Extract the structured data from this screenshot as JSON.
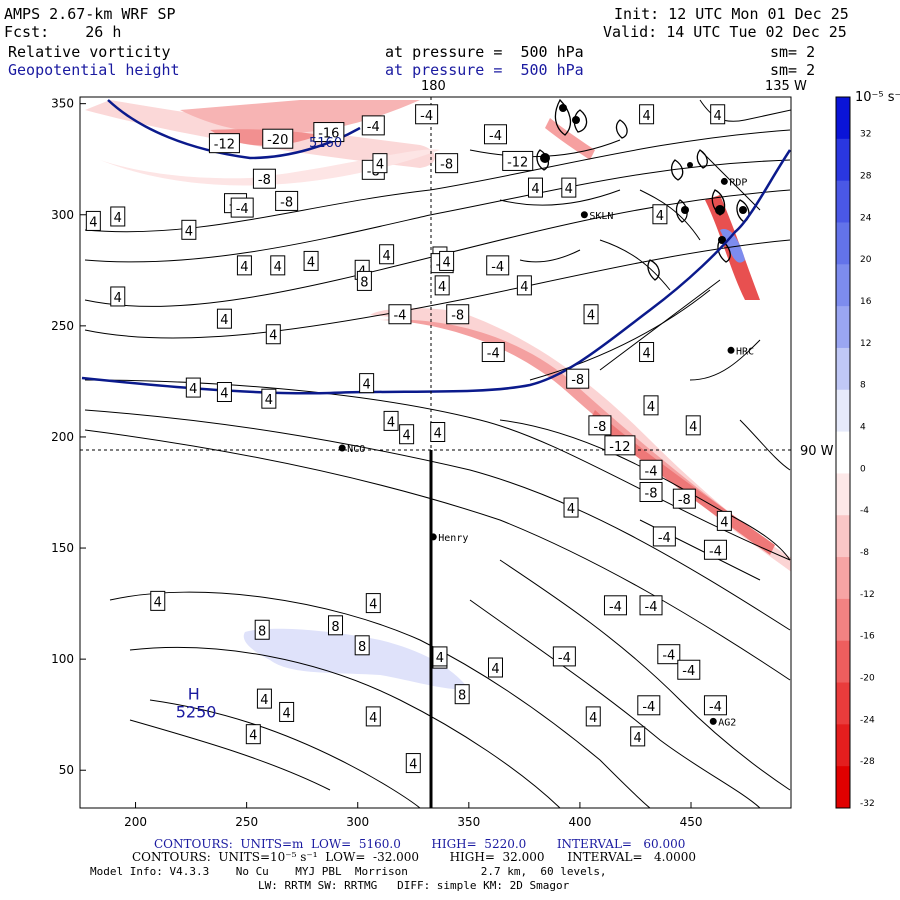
{
  "header": {
    "model_line": "AMPS 2.67-km WRF SP",
    "fcst_line": "Fcst:    26 h",
    "init_line": "Init: 12 UTC Mon 01 Dec 25",
    "valid_line": "Valid: 14 UTC Tue 02 Dec 25",
    "field1_name": "Relative vorticity",
    "field1_level": "at pressure =  500 hPa",
    "field1_sm": "sm= 2",
    "field2_name": "Geopotential height",
    "field2_level": "at pressure =  500 hPa",
    "field2_sm": "sm= 2",
    "lon_label_180": "180",
    "lon_label_135": "135 W",
    "lon_label_90": "90 W"
  },
  "axes": {
    "x_ticks": [
      "200",
      "250",
      "300",
      "350",
      "400",
      "450"
    ],
    "y_ticks": [
      "350",
      "300",
      "250",
      "200",
      "150",
      "100",
      "50"
    ],
    "x_range": [
      175,
      495
    ],
    "y_range": [
      33,
      353
    ]
  },
  "stations": [
    {
      "name": "NCO",
      "x": 293,
      "y": 195
    },
    {
      "name": "Henry",
      "x": 334,
      "y": 155
    },
    {
      "name": "AG2",
      "x": 460,
      "y": 72
    },
    {
      "name": "HRC",
      "x": 468,
      "y": 239
    },
    {
      "name": "RDP",
      "x": 465,
      "y": 315
    },
    {
      "name": "SKLN",
      "x": 402,
      "y": 300
    }
  ],
  "highs": [
    {
      "symbol": "H",
      "value": "5250",
      "x": 228,
      "y": 80
    }
  ],
  "contour_labels": [
    {
      "text": "-12",
      "x": 240,
      "y": 332,
      "color": "red"
    },
    {
      "text": "-20",
      "x": 264,
      "y": 334,
      "color": "red"
    },
    {
      "text": "-16",
      "x": 287,
      "y": 337,
      "color": "red"
    },
    {
      "text": "-4",
      "x": 307,
      "y": 340,
      "color": "red"
    },
    {
      "text": "-4",
      "x": 331,
      "y": 345,
      "color": "red"
    },
    {
      "text": "-4",
      "x": 362,
      "y": 336,
      "color": "red"
    },
    {
      "text": "-12",
      "x": 372,
      "y": 324,
      "color": "red"
    },
    {
      "text": "-8",
      "x": 340,
      "y": 323,
      "color": "red"
    },
    {
      "text": "-8",
      "x": 307,
      "y": 320,
      "color": "red"
    },
    {
      "text": "-8",
      "x": 258,
      "y": 316,
      "color": "red"
    },
    {
      "text": "-8",
      "x": 268,
      "y": 306,
      "color": "red"
    },
    {
      "text": "-4",
      "x": 245,
      "y": 305,
      "color": "red"
    },
    {
      "text": "-4",
      "x": 248,
      "y": 303,
      "color": "red"
    },
    {
      "text": "4",
      "x": 395,
      "y": 312,
      "color": "black"
    },
    {
      "text": "4",
      "x": 380,
      "y": 312,
      "color": "black"
    },
    {
      "text": "4",
      "x": 310,
      "y": 323,
      "color": "black"
    },
    {
      "text": "4",
      "x": 430,
      "y": 345,
      "color": "black"
    },
    {
      "text": "4",
      "x": 462,
      "y": 345,
      "color": "black"
    },
    {
      "text": "4",
      "x": 436,
      "y": 300,
      "color": "black"
    },
    {
      "text": "4",
      "x": 181,
      "y": 297,
      "color": "black"
    },
    {
      "text": "4",
      "x": 192,
      "y": 299,
      "color": "black"
    },
    {
      "text": "4",
      "x": 224,
      "y": 293,
      "color": "black"
    },
    {
      "text": "4",
      "x": 249,
      "y": 277,
      "color": "black"
    },
    {
      "text": "4",
      "x": 264,
      "y": 277,
      "color": "black"
    },
    {
      "text": "4",
      "x": 279,
      "y": 279,
      "color": "black"
    },
    {
      "text": "4",
      "x": 302,
      "y": 275,
      "color": "black"
    },
    {
      "text": "4",
      "x": 313,
      "y": 282,
      "color": "black"
    },
    {
      "text": "4",
      "x": 337,
      "y": 281,
      "color": "black"
    },
    {
      "text": "4",
      "x": 192,
      "y": 263,
      "color": "black"
    },
    {
      "text": "4",
      "x": 240,
      "y": 253,
      "color": "black"
    },
    {
      "text": "4",
      "x": 338,
      "y": 268,
      "color": "black"
    },
    {
      "text": "8",
      "x": 303,
      "y": 270,
      "color": "black"
    },
    {
      "text": "-4",
      "x": 338,
      "y": 278,
      "color": "red"
    },
    {
      "text": "-4",
      "x": 363,
      "y": 277,
      "color": "red"
    },
    {
      "text": "4",
      "x": 340,
      "y": 279,
      "color": "black"
    },
    {
      "text": "-8",
      "x": 345,
      "y": 255,
      "color": "red"
    },
    {
      "text": "-4",
      "x": 319,
      "y": 255,
      "color": "red"
    },
    {
      "text": "-4",
      "x": 361,
      "y": 238,
      "color": "red"
    },
    {
      "text": "4",
      "x": 375,
      "y": 268,
      "color": "black"
    },
    {
      "text": "-8",
      "x": 399,
      "y": 226,
      "color": "red"
    },
    {
      "text": "-8",
      "x": 409,
      "y": 205,
      "color": "red"
    },
    {
      "text": "-12",
      "x": 418,
      "y": 196,
      "color": "red"
    },
    {
      "text": "-4",
      "x": 432,
      "y": 185,
      "color": "red"
    },
    {
      "text": "-8",
      "x": 432,
      "y": 175,
      "color": "red"
    },
    {
      "text": "-8",
      "x": 447,
      "y": 172,
      "color": "red"
    },
    {
      "text": "4",
      "x": 465,
      "y": 162,
      "color": "black"
    },
    {
      "text": "-4",
      "x": 438,
      "y": 155,
      "color": "red"
    },
    {
      "text": "-4",
      "x": 461,
      "y": 149,
      "color": "red"
    },
    {
      "text": "-4",
      "x": 416,
      "y": 124,
      "color": "red"
    },
    {
      "text": "-4",
      "x": 432,
      "y": 124,
      "color": "red"
    },
    {
      "text": "-4",
      "x": 393,
      "y": 101,
      "color": "red"
    },
    {
      "text": "-4",
      "x": 440,
      "y": 102,
      "color": "red"
    },
    {
      "text": "-4",
      "x": 449,
      "y": 95,
      "color": "red"
    },
    {
      "text": "-4",
      "x": 431,
      "y": 79,
      "color": "red"
    },
    {
      "text": "-4",
      "x": 461,
      "y": 79,
      "color": "red"
    },
    {
      "text": "4",
      "x": 362,
      "y": 96,
      "color": "black"
    },
    {
      "text": "4",
      "x": 406,
      "y": 74,
      "color": "black"
    },
    {
      "text": "4",
      "x": 426,
      "y": 65,
      "color": "black"
    },
    {
      "text": "4",
      "x": 396,
      "y": 168,
      "color": "black"
    },
    {
      "text": "4",
      "x": 405,
      "y": 255,
      "color": "black"
    },
    {
      "text": "4",
      "x": 430,
      "y": 238,
      "color": "black"
    },
    {
      "text": "4",
      "x": 451,
      "y": 205,
      "color": "black"
    },
    {
      "text": "4",
      "x": 432,
      "y": 214,
      "color": "black"
    },
    {
      "text": "4",
      "x": 240,
      "y": 220,
      "color": "black"
    },
    {
      "text": "4",
      "x": 226,
      "y": 222,
      "color": "black"
    },
    {
      "text": "4",
      "x": 260,
      "y": 217,
      "color": "black"
    },
    {
      "text": "4",
      "x": 304,
      "y": 224,
      "color": "black"
    },
    {
      "text": "4",
      "x": 315,
      "y": 207,
      "color": "black"
    },
    {
      "text": "4",
      "x": 322,
      "y": 201,
      "color": "black"
    },
    {
      "text": "4",
      "x": 336,
      "y": 202,
      "color": "black"
    },
    {
      "text": "4",
      "x": 262,
      "y": 246,
      "color": "black"
    },
    {
      "text": "4",
      "x": 210,
      "y": 126,
      "color": "black"
    },
    {
      "text": "4",
      "x": 307,
      "y": 125,
      "color": "black"
    },
    {
      "text": "8",
      "x": 257,
      "y": 113,
      "color": "black"
    },
    {
      "text": "8",
      "x": 290,
      "y": 115,
      "color": "black"
    },
    {
      "text": "8",
      "x": 302,
      "y": 106,
      "color": "black"
    },
    {
      "text": "8",
      "x": 337,
      "y": 100,
      "color": "black"
    },
    {
      "text": "8",
      "x": 347,
      "y": 84,
      "color": "black"
    },
    {
      "text": "4",
      "x": 337,
      "y": 101,
      "color": "black"
    },
    {
      "text": "4",
      "x": 258,
      "y": 82,
      "color": "black"
    },
    {
      "text": "4",
      "x": 268,
      "y": 76,
      "color": "black"
    },
    {
      "text": "4",
      "x": 307,
      "y": 74,
      "color": "black"
    },
    {
      "text": "4",
      "x": 253,
      "y": 66,
      "color": "black"
    },
    {
      "text": "4",
      "x": 325,
      "y": 53,
      "color": "black"
    }
  ],
  "colorbar": {
    "unit_label": "10⁻⁵ s⁻¹",
    "ticks": [
      "32",
      "28",
      "24",
      "20",
      "16",
      "12",
      "8",
      "4",
      "0",
      "-4",
      "-8",
      "-12",
      "-16",
      "-20",
      "-24",
      "-28",
      "-32"
    ],
    "colors": [
      "#0a14d8",
      "#2a37e0",
      "#4a58e6",
      "#6373ea",
      "#7d8cee",
      "#9aa6f2",
      "#c0c8f6",
      "#e6eafb",
      "#ffffff",
      "#fde8e8",
      "#fac6c6",
      "#f6a4a4",
      "#f28282",
      "#ee5e5e",
      "#ea3c3c",
      "#e41e1e",
      "#e00000"
    ]
  },
  "footer": {
    "line1": "CONTOURS:  UNITS=m  LOW=  5160.0        HIGH=  5220.0        INTERVAL=   60.000",
    "line2": "CONTOURS:  UNITS=10⁻⁵ s⁻¹  LOW=  -32.000        HIGH=  32.000      INTERVAL=   4.0000",
    "line3": "Model Info: V4.3.3    No Cu    MYJ PBL  Morrison           2.7 km,  60 levels,",
    "line4": "LW: RRTM SW: RRTMG   DIFF: simple KM: 2D Smagor",
    "height_label": "5160"
  }
}
